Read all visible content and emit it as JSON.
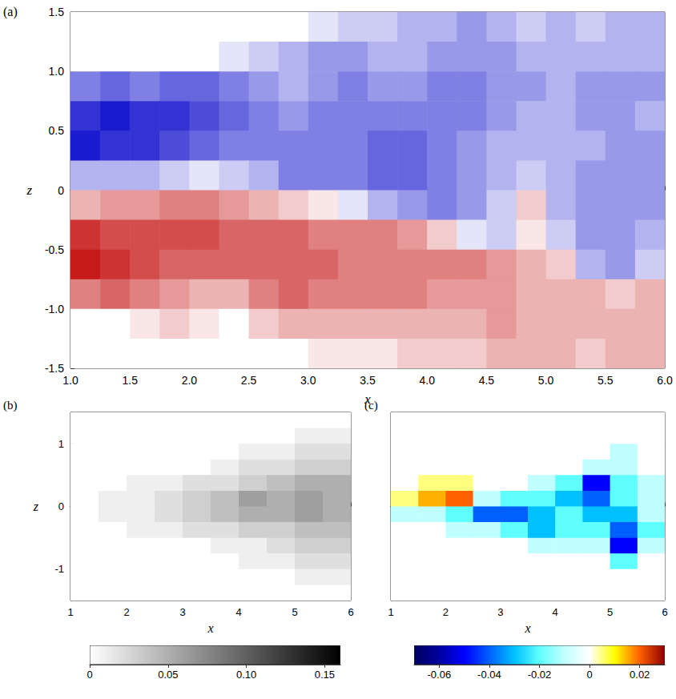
{
  "chart_data": [
    {
      "type": "heatmap",
      "title": "(a)",
      "x_label": "x",
      "y_label": "z",
      "xlim": [
        1,
        6
      ],
      "ylim": [
        -1.5,
        1.5
      ],
      "xticks": [
        {
          "value": 1,
          "label": "1.0"
        },
        1.5,
        {
          "value": 2,
          "label": "2.0"
        },
        2.5,
        {
          "value": 3,
          "label": "3.0"
        },
        3.5,
        {
          "value": 4,
          "label": "4.0"
        },
        4.5,
        {
          "value": 5,
          "label": "5.0"
        },
        5.5,
        {
          "value": 6,
          "label": "6.0"
        }
      ],
      "yticks": [
        -1.5,
        {
          "value": -1,
          "label": "-1.0"
        },
        -0.5,
        0,
        0.5,
        {
          "value": 1,
          "label": "1.0"
        },
        1.5
      ],
      "x": [
        1.125,
        1.375,
        1.625,
        1.875,
        2.125,
        2.375,
        2.625,
        2.875,
        3.125,
        3.375,
        3.625,
        3.875,
        4.125,
        4.375,
        4.625,
        4.875,
        5.125,
        5.375,
        5.625,
        5.875
      ],
      "y": [
        1.375,
        1.125,
        0.875,
        0.625,
        0.375,
        0.125,
        -0.125,
        -0.375,
        -0.625,
        -0.875,
        -1.125,
        -1.375
      ],
      "values": [
        [
          0,
          0,
          0,
          0,
          0,
          0,
          0,
          0,
          0.1,
          0.2,
          0.2,
          0.3,
          0.3,
          0.4,
          0.3,
          0.2,
          0.3,
          0.2,
          0.3,
          0.3
        ],
        [
          0,
          0,
          0,
          0,
          0,
          0.1,
          0.2,
          0.3,
          0.4,
          0.4,
          0.3,
          0.3,
          0.4,
          0.4,
          0.4,
          0.3,
          0.3,
          0.3,
          0.3,
          0.3
        ],
        [
          0.5,
          0.6,
          0.5,
          0.6,
          0.6,
          0.5,
          0.4,
          0.3,
          0.4,
          0.5,
          0.4,
          0.4,
          0.5,
          0.5,
          0.4,
          0.4,
          0.3,
          0.4,
          0.4,
          0.4
        ],
        [
          0.8,
          0.9,
          0.8,
          0.8,
          0.7,
          0.6,
          0.5,
          0.4,
          0.5,
          0.5,
          0.5,
          0.5,
          0.5,
          0.5,
          0.4,
          0.3,
          0.3,
          0.4,
          0.4,
          0.3
        ],
        [
          0.9,
          0.8,
          0.8,
          0.7,
          0.6,
          0.5,
          0.5,
          0.5,
          0.5,
          0.5,
          0.6,
          0.6,
          0.5,
          0.4,
          0.3,
          0.3,
          0.3,
          0.3,
          0.4,
          0.4
        ],
        [
          0.3,
          0.3,
          0.3,
          0.2,
          0.1,
          0.2,
          0.3,
          0.5,
          0.5,
          0.5,
          0.6,
          0.6,
          0.5,
          0.4,
          0.3,
          0.2,
          0.3,
          0.4,
          0.4,
          0.4
        ],
        [
          -0.3,
          -0.4,
          -0.4,
          -0.5,
          -0.5,
          -0.4,
          -0.3,
          -0.2,
          -0.1,
          0.1,
          0.3,
          0.4,
          0.5,
          0.4,
          0.2,
          -0.2,
          0.3,
          0.4,
          0.4,
          0.4
        ],
        [
          -0.8,
          -0.7,
          -0.7,
          -0.7,
          -0.7,
          -0.6,
          -0.6,
          -0.6,
          -0.5,
          -0.5,
          -0.5,
          -0.4,
          -0.2,
          0.1,
          0.2,
          -0.1,
          0.2,
          0.4,
          0.4,
          0.3
        ],
        [
          -0.9,
          -0.8,
          -0.7,
          -0.6,
          -0.6,
          -0.6,
          -0.6,
          -0.6,
          -0.6,
          -0.5,
          -0.5,
          -0.5,
          -0.5,
          -0.5,
          -0.4,
          -0.3,
          -0.2,
          0.3,
          0.4,
          0.2
        ],
        [
          -0.5,
          -0.6,
          -0.5,
          -0.4,
          -0.3,
          -0.3,
          -0.5,
          -0.6,
          -0.5,
          -0.5,
          -0.5,
          -0.5,
          -0.4,
          -0.4,
          -0.4,
          -0.3,
          -0.3,
          -0.3,
          -0.2,
          -0.3
        ],
        [
          0,
          0,
          -0.1,
          -0.2,
          -0.1,
          0,
          -0.2,
          -0.3,
          -0.3,
          -0.3,
          -0.3,
          -0.3,
          -0.3,
          -0.3,
          -0.4,
          -0.3,
          -0.3,
          -0.3,
          -0.3,
          -0.3
        ],
        [
          0,
          0,
          0,
          0,
          0,
          0,
          0,
          0,
          -0.1,
          -0.1,
          -0.1,
          -0.2,
          -0.2,
          -0.2,
          -0.3,
          -0.3,
          -0.3,
          -0.2,
          -0.3,
          -0.3
        ]
      ],
      "value_range": [
        -1,
        1
      ],
      "colors": [
        "#c00000",
        "#ffffff",
        "#0000c8"
      ]
    },
    {
      "type": "heatmap",
      "title": "(b)",
      "x_label": "x",
      "y_label": "z",
      "xlim": [
        1,
        6
      ],
      "ylim": [
        -1.5,
        1.5
      ],
      "xticks": [
        1,
        2,
        3,
        4,
        5,
        6
      ],
      "yticks": [
        -1,
        0,
        1
      ],
      "x": [
        1.25,
        1.75,
        2.25,
        2.75,
        3.25,
        3.75,
        4.25,
        4.75,
        5.25,
        5.75
      ],
      "y": [
        1.375,
        1.125,
        0.875,
        0.625,
        0.375,
        0.125,
        -0.125,
        -0.375,
        -0.625,
        -0.875,
        -1.125,
        -1.375
      ],
      "values": [
        [
          0,
          0,
          0,
          0,
          0,
          0,
          0,
          0,
          0,
          0
        ],
        [
          0,
          0,
          0,
          0,
          0,
          0,
          0,
          0,
          0.01,
          0.01
        ],
        [
          0,
          0,
          0,
          0,
          0,
          0,
          0.01,
          0.01,
          0.02,
          0.02
        ],
        [
          0,
          0,
          0,
          0,
          0,
          0.01,
          0.02,
          0.02,
          0.03,
          0.03
        ],
        [
          0,
          0,
          0.01,
          0.01,
          0.02,
          0.02,
          0.03,
          0.04,
          0.05,
          0.05
        ],
        [
          0,
          0.01,
          0.01,
          0.02,
          0.03,
          0.04,
          0.06,
          0.05,
          0.06,
          0.05
        ],
        [
          0,
          0.01,
          0.01,
          0.02,
          0.03,
          0.04,
          0.05,
          0.05,
          0.06,
          0.05
        ],
        [
          0,
          0,
          0.01,
          0.01,
          0.02,
          0.02,
          0.03,
          0.03,
          0.04,
          0.04
        ],
        [
          0,
          0,
          0,
          0,
          0,
          0.01,
          0.01,
          0.02,
          0.03,
          0.03
        ],
        [
          0,
          0,
          0,
          0,
          0,
          0,
          0.01,
          0.01,
          0.02,
          0.02
        ],
        [
          0,
          0,
          0,
          0,
          0,
          0,
          0,
          0,
          0.01,
          0.01
        ],
        [
          0,
          0,
          0,
          0,
          0,
          0,
          0,
          0,
          0,
          0
        ]
      ],
      "colorbar": {
        "lim": [
          0,
          0.16
        ],
        "ticks": [
          0,
          0.05,
          {
            "value": 0.1,
            "label": "0.10"
          },
          0.15
        ]
      },
      "colors": [
        "#ffffff",
        "#000000"
      ]
    },
    {
      "type": "heatmap",
      "title": "(c)",
      "x_label": "x",
      "xlim": [
        1,
        6
      ],
      "ylim": [
        -1.5,
        1.5
      ],
      "xticks": [
        1,
        2,
        3,
        4,
        5,
        6
      ],
      "tick_labels": "x",
      "x": [
        1.25,
        1.75,
        2.25,
        2.75,
        3.25,
        3.75,
        4.25,
        4.75,
        5.25,
        5.75
      ],
      "y": [
        1.375,
        1.125,
        0.875,
        0.625,
        0.375,
        0.125,
        -0.125,
        -0.375,
        -0.625,
        -0.875,
        -1.125,
        -1.375
      ],
      "values": [
        [
          0,
          0,
          0,
          0,
          0,
          0,
          0,
          0,
          0,
          0
        ],
        [
          0,
          0,
          0,
          0,
          0,
          0,
          0,
          0,
          0,
          0
        ],
        [
          0,
          0,
          0,
          0,
          0,
          0,
          0,
          0,
          -0.01,
          0
        ],
        [
          0,
          0,
          0,
          0,
          0,
          0,
          0,
          -0.01,
          -0.01,
          0
        ],
        [
          0,
          0.005,
          0.005,
          0,
          0,
          -0.01,
          -0.02,
          -0.05,
          -0.02,
          -0.01
        ],
        [
          0.005,
          0.015,
          0.02,
          -0.01,
          -0.02,
          -0.02,
          -0.03,
          -0.04,
          -0.02,
          -0.01
        ],
        [
          -0.01,
          -0.01,
          -0.02,
          -0.04,
          -0.04,
          -0.03,
          -0.02,
          -0.03,
          -0.03,
          -0.01
        ],
        [
          0,
          0,
          -0.01,
          -0.01,
          -0.02,
          -0.03,
          -0.02,
          -0.02,
          -0.04,
          -0.02
        ],
        [
          0,
          0,
          0,
          0,
          0,
          -0.01,
          -0.01,
          -0.01,
          -0.05,
          -0.01
        ],
        [
          0,
          0,
          0,
          0,
          0,
          0,
          0,
          0,
          -0.02,
          0
        ],
        [
          0,
          0,
          0,
          0,
          0,
          0,
          0,
          0,
          0,
          0
        ],
        [
          0,
          0,
          0,
          0,
          0,
          0,
          0,
          0,
          0,
          0
        ]
      ],
      "colorbar": {
        "lim": [
          -0.07,
          0.03
        ],
        "ticks": [
          -0.06,
          -0.04,
          -0.02,
          0,
          0.02
        ]
      },
      "colors": [
        "#000060",
        "#0000a0",
        "#0000ff",
        "#0060ff",
        "#00c0ff",
        "#60ffff",
        "#c0ffff",
        "#ffffff",
        "#ffff00",
        "#ff6000",
        "#900000"
      ]
    }
  ]
}
